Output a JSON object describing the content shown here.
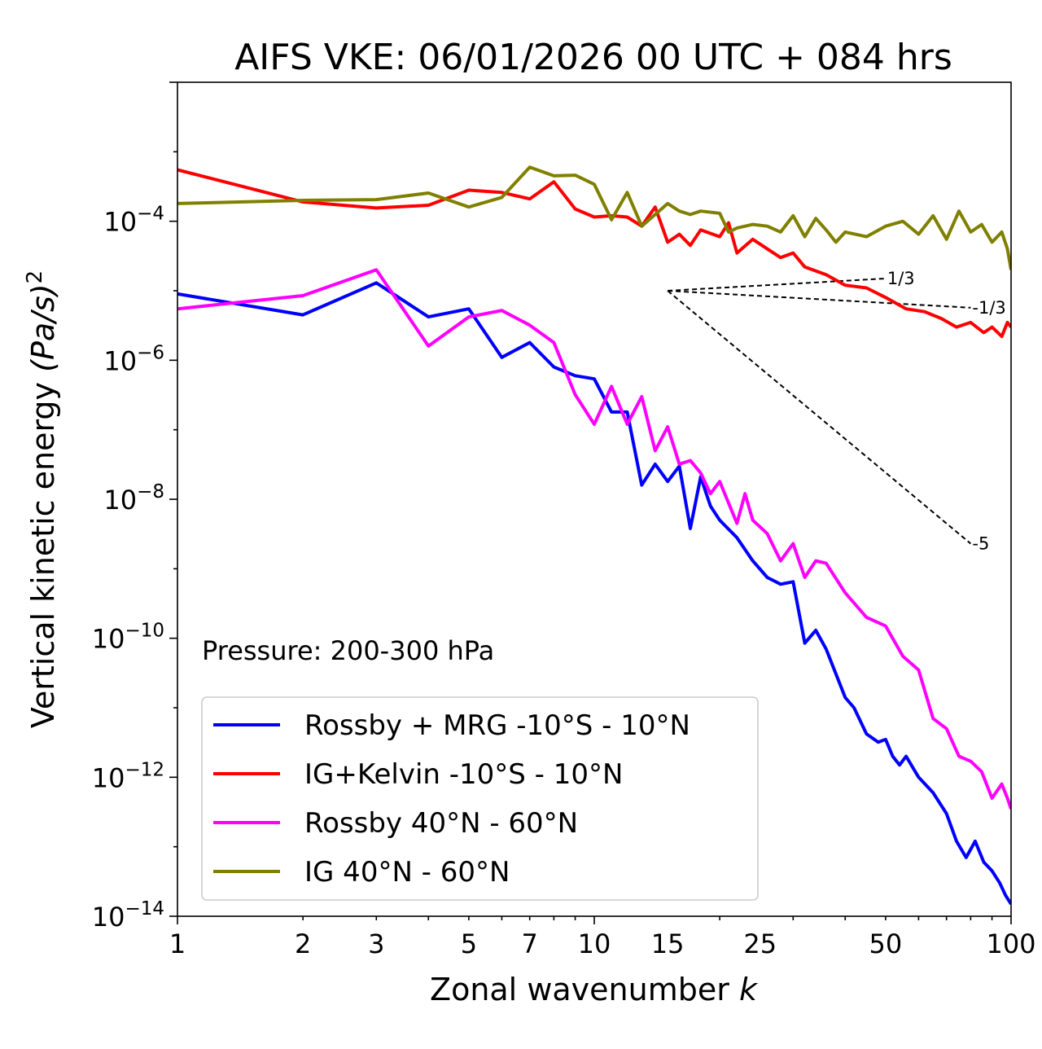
{
  "chart_data": {
    "type": "line",
    "title": "AIFS VKE: 06/01/2026 00 UTC + 084 hrs",
    "xlabel": "Zonal wavenumber",
    "xlabel_var": "k",
    "ylabel": "Vertical kinetic energy",
    "ylabel_unit": "(Pa/s)",
    "ylabel_exp": "2",
    "xscale": "log",
    "yscale": "log",
    "xlim": [
      1,
      100
    ],
    "ylim": [
      1e-14,
      0.01
    ],
    "xticks": [
      {
        "value": 1,
        "label": "1"
      },
      {
        "value": 2,
        "label": "2"
      },
      {
        "value": 3,
        "label": "3"
      },
      {
        "value": 5,
        "label": "5"
      },
      {
        "value": 7,
        "label": "7"
      },
      {
        "value": 10,
        "label": "10"
      },
      {
        "value": 15,
        "label": "15"
      },
      {
        "value": 25,
        "label": "25"
      },
      {
        "value": 50,
        "label": "50"
      },
      {
        "value": 100,
        "label": "100"
      }
    ],
    "yticks": [
      {
        "value": 0.0001,
        "base": "10",
        "exp": "−4"
      },
      {
        "value": 1e-06,
        "base": "10",
        "exp": "−6"
      },
      {
        "value": 1e-08,
        "base": "10",
        "exp": "−8"
      },
      {
        "value": 1e-10,
        "base": "10",
        "exp": "−10"
      },
      {
        "value": 1e-12,
        "base": "10",
        "exp": "−12"
      },
      {
        "value": 1e-14,
        "base": "10",
        "exp": "−14"
      }
    ],
    "annotation": "Pressure: 200-300 hPa",
    "legend_position": "lower-left",
    "reference_slopes": [
      {
        "label": "1/3",
        "x0": 15,
        "y0": 1e-05,
        "x1": 50,
        "y1": 1.5e-05
      },
      {
        "label": "-1/3",
        "x0": 15,
        "y0": 1e-05,
        "x1": 80,
        "y1": 5.7e-06
      },
      {
        "label": "-5",
        "x0": 15,
        "y0": 1e-05,
        "x1": 80,
        "y1": 2.3e-09
      }
    ],
    "series": [
      {
        "name": "Rossby + MRG -10°S - 10°N",
        "color": "#0000ff",
        "points": [
          [
            1,
            9e-06
          ],
          [
            2,
            4.5e-06
          ],
          [
            3,
            1.3e-05
          ],
          [
            4,
            4.2e-06
          ],
          [
            5,
            5.5e-06
          ],
          [
            6,
            1.1e-06
          ],
          [
            7,
            1.8e-06
          ],
          [
            8,
            8e-07
          ],
          [
            9,
            6e-07
          ],
          [
            10,
            5.4e-07
          ],
          [
            11,
            1.8e-07
          ],
          [
            12,
            1.8e-07
          ],
          [
            13,
            1.6e-08
          ],
          [
            14,
            3.2e-08
          ],
          [
            15,
            1.8e-08
          ],
          [
            16,
            3e-08
          ],
          [
            17,
            3.8e-09
          ],
          [
            18,
            2.1e-08
          ],
          [
            19,
            8e-09
          ],
          [
            20,
            5e-09
          ],
          [
            22,
            2.8e-09
          ],
          [
            24,
            1.3e-09
          ],
          [
            26,
            7.5e-10
          ],
          [
            28,
            6e-10
          ],
          [
            30,
            6.5e-10
          ],
          [
            32,
            8.5e-11
          ],
          [
            34,
            1.3e-10
          ],
          [
            36,
            7e-11
          ],
          [
            40,
            1.4e-11
          ],
          [
            42,
            1e-11
          ],
          [
            45,
            4.2e-12
          ],
          [
            48,
            3.2e-12
          ],
          [
            50,
            3.5e-12
          ],
          [
            52,
            2e-12
          ],
          [
            54,
            1.5e-12
          ],
          [
            56,
            2e-12
          ],
          [
            60,
            1e-12
          ],
          [
            65,
            6e-13
          ],
          [
            70,
            3e-13
          ],
          [
            74,
            1.2e-13
          ],
          [
            78,
            7e-14
          ],
          [
            82,
            1.2e-13
          ],
          [
            86,
            6e-14
          ],
          [
            90,
            4.5e-14
          ],
          [
            94,
            3e-14
          ],
          [
            97,
            2e-14
          ],
          [
            100,
            1.5e-14
          ]
        ]
      },
      {
        "name": "IG+Kelvin -10°S - 10°N",
        "color": "#ff0000",
        "points": [
          [
            1,
            0.00055
          ],
          [
            2,
            0.00019
          ],
          [
            3,
            0.000155
          ],
          [
            4,
            0.00017
          ],
          [
            5,
            0.00028
          ],
          [
            6,
            0.00026
          ],
          [
            7,
            0.00021
          ],
          [
            8,
            0.00037
          ],
          [
            9,
            0.00015
          ],
          [
            10,
            0.000115
          ],
          [
            11,
            0.00012
          ],
          [
            12,
            0.000115
          ],
          [
            13,
            8.5e-05
          ],
          [
            14,
            0.00016
          ],
          [
            15,
            5e-05
          ],
          [
            16,
            6.5e-05
          ],
          [
            17,
            4.5e-05
          ],
          [
            18,
            7.5e-05
          ],
          [
            20,
            6e-05
          ],
          [
            21,
            9.5e-05
          ],
          [
            22,
            3.5e-05
          ],
          [
            24,
            5.5e-05
          ],
          [
            26,
            4e-05
          ],
          [
            28,
            3e-05
          ],
          [
            30,
            3.5e-05
          ],
          [
            32,
            2.2e-05
          ],
          [
            36,
            1.7e-05
          ],
          [
            40,
            1.2e-05
          ],
          [
            45,
            1.1e-05
          ],
          [
            50,
            8e-06
          ],
          [
            56,
            5.5e-06
          ],
          [
            62,
            5e-06
          ],
          [
            68,
            4e-06
          ],
          [
            74,
            3e-06
          ],
          [
            80,
            3.5e-06
          ],
          [
            86,
            2.5e-06
          ],
          [
            90,
            3e-06
          ],
          [
            95,
            2.2e-06
          ],
          [
            98,
            3.5e-06
          ],
          [
            100,
            3e-06
          ]
        ]
      },
      {
        "name": "Rossby 40°N - 60°N",
        "color": "#ff00ff",
        "points": [
          [
            1,
            5.5e-06
          ],
          [
            2,
            8.5e-06
          ],
          [
            3,
            2e-05
          ],
          [
            4,
            1.6e-06
          ],
          [
            5,
            4.2e-06
          ],
          [
            6,
            5.2e-06
          ],
          [
            7,
            3.2e-06
          ],
          [
            8,
            1.8e-06
          ],
          [
            9,
            3.2e-07
          ],
          [
            10,
            1.2e-07
          ],
          [
            11,
            4.2e-07
          ],
          [
            12,
            1.2e-07
          ],
          [
            13,
            3e-07
          ],
          [
            14,
            5e-08
          ],
          [
            15,
            1.1e-07
          ],
          [
            16,
            3.2e-08
          ],
          [
            17,
            3.6e-08
          ],
          [
            18,
            2.4e-08
          ],
          [
            19,
            1.2e-08
          ],
          [
            20,
            1.8e-08
          ],
          [
            22,
            4.5e-09
          ],
          [
            23,
            1.2e-08
          ],
          [
            24,
            5e-09
          ],
          [
            26,
            3.2e-09
          ],
          [
            28,
            1.3e-09
          ],
          [
            30,
            2.3e-09
          ],
          [
            32,
            7.5e-10
          ],
          [
            34,
            1.3e-09
          ],
          [
            36,
            1.2e-09
          ],
          [
            40,
            4.5e-10
          ],
          [
            45,
            2e-10
          ],
          [
            50,
            1.5e-10
          ],
          [
            55,
            5.5e-11
          ],
          [
            60,
            3.5e-11
          ],
          [
            65,
            7e-12
          ],
          [
            70,
            5e-12
          ],
          [
            75,
            2e-12
          ],
          [
            80,
            1.7e-12
          ],
          [
            85,
            1.2e-12
          ],
          [
            90,
            5e-13
          ],
          [
            95,
            8e-13
          ],
          [
            98,
            5e-13
          ],
          [
            100,
            3.5e-13
          ]
        ]
      },
      {
        "name": "IG 40°N - 60°N",
        "color": "#808000",
        "points": [
          [
            1,
            0.00018
          ],
          [
            2,
            0.0002
          ],
          [
            3,
            0.000205
          ],
          [
            4,
            0.000255
          ],
          [
            5,
            0.00016
          ],
          [
            6,
            0.00022
          ],
          [
            7,
            0.0006
          ],
          [
            8,
            0.00045
          ],
          [
            9,
            0.00046
          ],
          [
            10,
            0.00034
          ],
          [
            11,
            0.000105
          ],
          [
            12,
            0.00026
          ],
          [
            13,
            8.5e-05
          ],
          [
            15,
            0.00018
          ],
          [
            16,
            0.00014
          ],
          [
            17,
            0.000125
          ],
          [
            18,
            0.00014
          ],
          [
            20,
            0.00013
          ],
          [
            21,
            7e-05
          ],
          [
            22,
            8e-05
          ],
          [
            24,
            9e-05
          ],
          [
            26,
            8.5e-05
          ],
          [
            28,
            7e-05
          ],
          [
            30,
            0.00012
          ],
          [
            32,
            6e-05
          ],
          [
            34,
            0.00011
          ],
          [
            36,
            7.5e-05
          ],
          [
            38,
            5e-05
          ],
          [
            40,
            7e-05
          ],
          [
            45,
            6e-05
          ],
          [
            50,
            8.5e-05
          ],
          [
            55,
            0.0001
          ],
          [
            60,
            6.5e-05
          ],
          [
            65,
            0.00012
          ],
          [
            70,
            5.5e-05
          ],
          [
            75,
            0.00014
          ],
          [
            80,
            7e-05
          ],
          [
            85,
            9e-05
          ],
          [
            90,
            5e-05
          ],
          [
            95,
            7e-05
          ],
          [
            98,
            4e-05
          ],
          [
            100,
            2e-05
          ]
        ]
      }
    ]
  }
}
